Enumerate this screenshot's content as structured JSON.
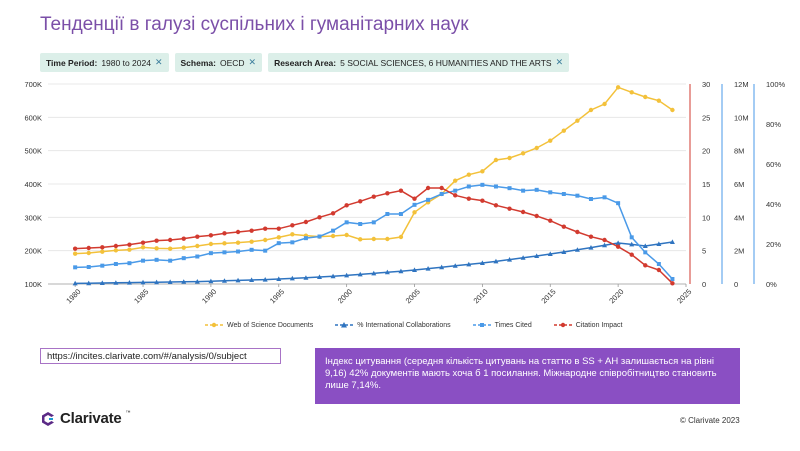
{
  "page": {
    "title": "Тенденції в галузі суспільних і гуманітарних наук",
    "filters": [
      {
        "label": "Time Period:",
        "value": "1980 to 2024"
      },
      {
        "label": "Schema:",
        "value": "OECD"
      },
      {
        "label": "Research Area:",
        "value": "5 SOCIAL SCIENCES, 6 HUMANITIES AND THE ARTS"
      }
    ],
    "url": "https://incites.clarivate.com/#/analysis/0/subject",
    "info_text": "Індекс цитування (середня кількість цитувань на статтю в SS + AH залишається на рівні 9,16) 42% документів мають хоча б 1 посилання. Міжнародне співробітництво становить лише 7,14%.",
    "logo": "Clarivate",
    "copyright": "© Clarivate 2023",
    "colors": {
      "wos": "#f3c13a",
      "intl": "#2f74c0",
      "times": "#4a9ae8",
      "impact": "#d23a2f",
      "accent": "#8a4fc3"
    }
  },
  "chart_data": {
    "type": "line",
    "x": [
      1980,
      1981,
      1982,
      1983,
      1984,
      1985,
      1986,
      1987,
      1988,
      1989,
      1990,
      1991,
      1992,
      1993,
      1994,
      1995,
      1996,
      1997,
      1998,
      1999,
      2000,
      2001,
      2002,
      2003,
      2004,
      2005,
      2006,
      2007,
      2008,
      2009,
      2010,
      2011,
      2012,
      2013,
      2014,
      2015,
      2016,
      2017,
      2018,
      2019,
      2020,
      2021,
      2022,
      2023,
      2024
    ],
    "x_ticks": [
      1980,
      1985,
      1990,
      1995,
      2000,
      2005,
      2010,
      2015,
      2020,
      2025
    ],
    "left_axis": {
      "ticks": [
        "100K",
        "200K",
        "300K",
        "400K",
        "500K",
        "600K",
        "700K"
      ],
      "range": [
        100000,
        700000
      ]
    },
    "right_axes": [
      {
        "name": "citation_impact",
        "ticks": [
          "0",
          "5",
          "10",
          "15",
          "20",
          "25",
          "30"
        ],
        "range": [
          0,
          30
        ]
      },
      {
        "name": "times_cited",
        "ticks": [
          "0",
          "2M",
          "4M",
          "6M",
          "8M",
          "10M",
          "12M"
        ],
        "range": [
          0,
          12000000
        ]
      },
      {
        "name": "percent",
        "ticks": [
          "0%",
          "20%",
          "40%",
          "60%",
          "80%",
          "100%"
        ],
        "range": [
          0,
          100
        ]
      }
    ],
    "series": [
      {
        "name": "Web of Science Documents",
        "axis": "left",
        "color": "#f3c13a",
        "marker": "circle",
        "values": [
          191000,
          193000,
          197000,
          201000,
          203000,
          210000,
          207000,
          206000,
          209000,
          214000,
          220000,
          222000,
          224000,
          227000,
          232000,
          240000,
          249000,
          245000,
          242000,
          244000,
          247000,
          234000,
          235000,
          235000,
          241000,
          315000,
          345000,
          370000,
          410000,
          428000,
          438000,
          472000,
          478000,
          492000,
          508000,
          530000,
          560000,
          590000,
          622000,
          640000,
          690000,
          675000,
          661000,
          650000,
          622000
        ]
      },
      {
        "name": "% International Collaborations",
        "axis": "percent",
        "color": "#2f74c0",
        "marker": "triangle",
        "values": [
          0.3,
          0.4,
          0.5,
          0.6,
          0.7,
          0.8,
          0.9,
          1.0,
          1.1,
          1.2,
          1.4,
          1.6,
          1.8,
          2.0,
          2.2,
          2.5,
          2.8,
          3.1,
          3.5,
          3.9,
          4.3,
          4.8,
          5.3,
          5.9,
          6.4,
          7.0,
          7.7,
          8.4,
          9.1,
          9.8,
          10.5,
          11.3,
          12.2,
          13.1,
          14.0,
          15.0,
          16.0,
          17.1,
          18.2,
          19.4,
          20.5,
          19.8,
          19.0,
          20.0,
          21.0
        ]
      },
      {
        "name": "Times Cited",
        "axis": "times_cited",
        "color": "#4a9ae8",
        "marker": "square",
        "values": [
          1000000,
          1020000,
          1100000,
          1200000,
          1250000,
          1400000,
          1450000,
          1400000,
          1550000,
          1650000,
          1850000,
          1900000,
          1950000,
          2050000,
          2000000,
          2450000,
          2500000,
          2750000,
          2850000,
          3200000,
          3700000,
          3600000,
          3700000,
          4200000,
          4200000,
          4750000,
          5050000,
          5400000,
          5600000,
          5850000,
          5950000,
          5850000,
          5750000,
          5600000,
          5650000,
          5500000,
          5400000,
          5300000,
          5100000,
          5200000,
          4850000,
          2800000,
          1900000,
          1200000,
          300000
        ]
      },
      {
        "name": "Citation Impact",
        "axis": "citation_impact",
        "color": "#d23a2f",
        "marker": "circle",
        "values": [
          5.3,
          5.4,
          5.5,
          5.7,
          5.9,
          6.2,
          6.5,
          6.6,
          6.8,
          7.1,
          7.3,
          7.6,
          7.8,
          8.0,
          8.3,
          8.3,
          8.8,
          9.3,
          10.0,
          10.6,
          11.8,
          12.4,
          13.1,
          13.6,
          14.0,
          12.8,
          14.4,
          14.4,
          13.3,
          12.8,
          12.5,
          11.8,
          11.3,
          10.8,
          10.2,
          9.5,
          8.6,
          7.8,
          7.1,
          6.6,
          5.6,
          4.4,
          2.8,
          2.1,
          0.1
        ]
      }
    ],
    "legend": [
      "Web of Science Documents",
      "% International Collaborations",
      "Times Cited",
      "Citation Impact"
    ]
  }
}
